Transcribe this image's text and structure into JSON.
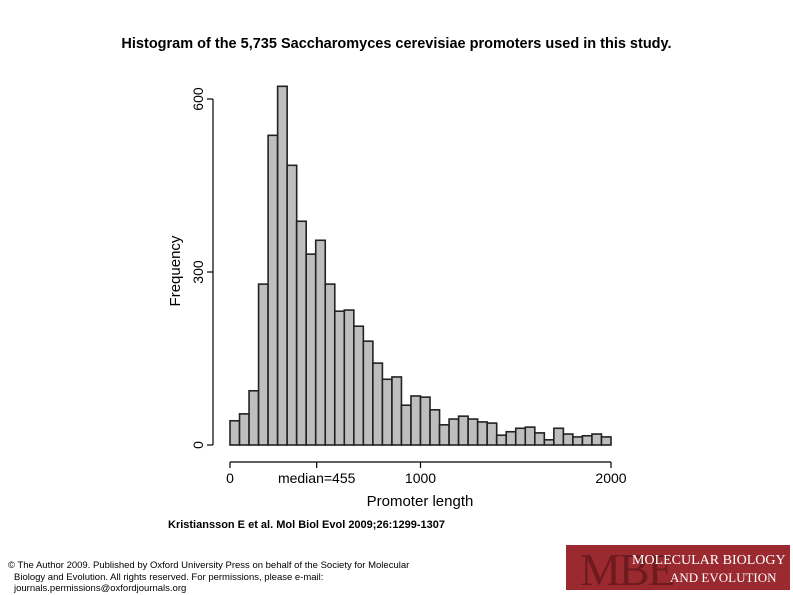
{
  "title": "Histogram of the 5,735 Saccharomyces cerevisiae promoters used in this study.",
  "citation": "Kristiansson E et al. Mol Biol Evol 2009;26:1299-1307",
  "copyright": [
    "© The Author 2009. Published by Oxford University Press on behalf of the Society for Molecular",
    "Biology and Evolution. All rights reserved. For permissions, please e-mail:",
    "journals.permissions@oxfordjournals.org"
  ],
  "logo": {
    "mark": "MBE",
    "line1": "MOLECULAR BIOLOGY",
    "line2": "AND EVOLUTION"
  },
  "chart_data": {
    "type": "bar",
    "title": "",
    "xlabel": "Promoter length",
    "ylabel": "Frequency",
    "bin_width": 50,
    "bin_start": 0,
    "xlim": [
      0,
      2000
    ],
    "ylim": [
      0,
      622
    ],
    "xticks": [
      {
        "value": 0,
        "label": "0"
      },
      {
        "value": 455,
        "label": "median=455"
      },
      {
        "value": 1000,
        "label": "1000"
      },
      {
        "value": 2000,
        "label": "2000"
      }
    ],
    "yticks": [
      {
        "value": 0,
        "label": "0"
      },
      {
        "value": 300,
        "label": "300"
      },
      {
        "value": 600,
        "label": "600"
      }
    ],
    "values": [
      42,
      54,
      94,
      279,
      537,
      622,
      485,
      388,
      331,
      355,
      279,
      232,
      234,
      206,
      180,
      142,
      114,
      118,
      69,
      85,
      83,
      61,
      35,
      45,
      50,
      45,
      40,
      38,
      17,
      23,
      29,
      31,
      21,
      9,
      29,
      19,
      14,
      16,
      19,
      14
    ],
    "bar_color": "#bebebe",
    "grid": false
  }
}
